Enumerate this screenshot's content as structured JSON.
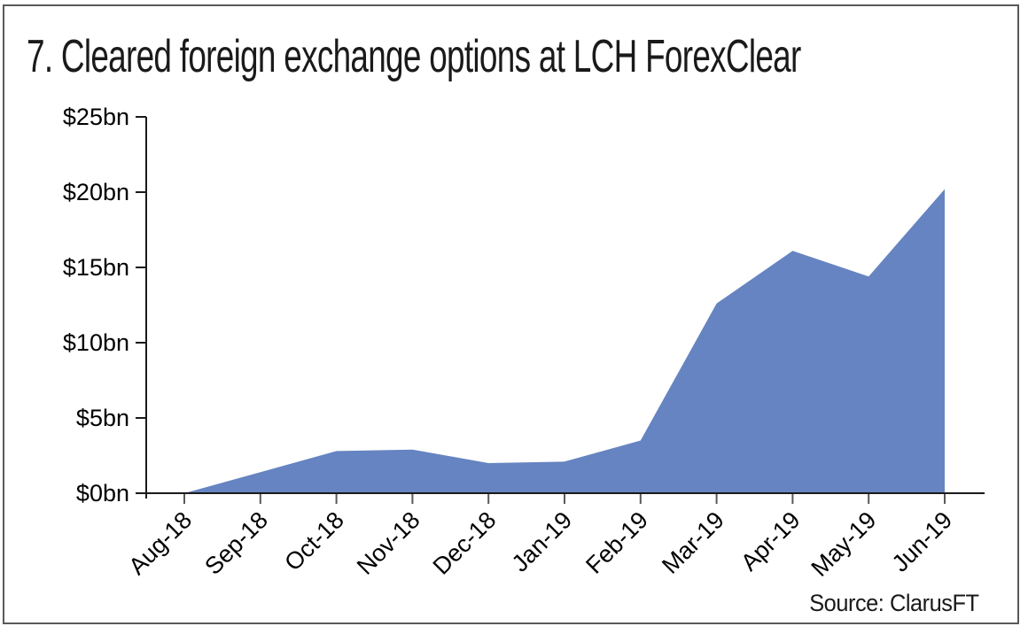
{
  "title": "7. Cleared foreign exchange options at LCH ForexClear",
  "source": "Source: ClarusFT",
  "colors": {
    "area_fill": "#6584C1",
    "axis": "#1a1a1a",
    "x_tick": "#595959",
    "frame_border": "#595959",
    "label_text": "#000000"
  },
  "chart_data": {
    "type": "area",
    "title": "7. Cleared foreign exchange options at LCH ForexClear",
    "categories": [
      "Aug-18",
      "Sep-18",
      "Oct-18",
      "Nov-18",
      "Dec-18",
      "Jan-19",
      "Feb-19",
      "Mar-19",
      "Apr-19",
      "May-19",
      "Jun-19"
    ],
    "values": [
      0,
      1.4,
      2.8,
      2.9,
      2.0,
      2.1,
      3.5,
      12.6,
      16.1,
      14.4,
      20.2
    ],
    "unit": "$bn",
    "xlabel": "",
    "ylabel": "",
    "ylim": [
      0,
      25
    ],
    "y_tick_values": [
      0,
      5,
      10,
      15,
      20,
      25
    ],
    "y_tick_labels": [
      "$0bn",
      "$5bn",
      "$10bn",
      "$15bn",
      "$20bn",
      "$25bn"
    ],
    "grid": false,
    "legend": false,
    "x_label_rotation_deg": -45,
    "annotation": "Source: ClarusFT"
  }
}
